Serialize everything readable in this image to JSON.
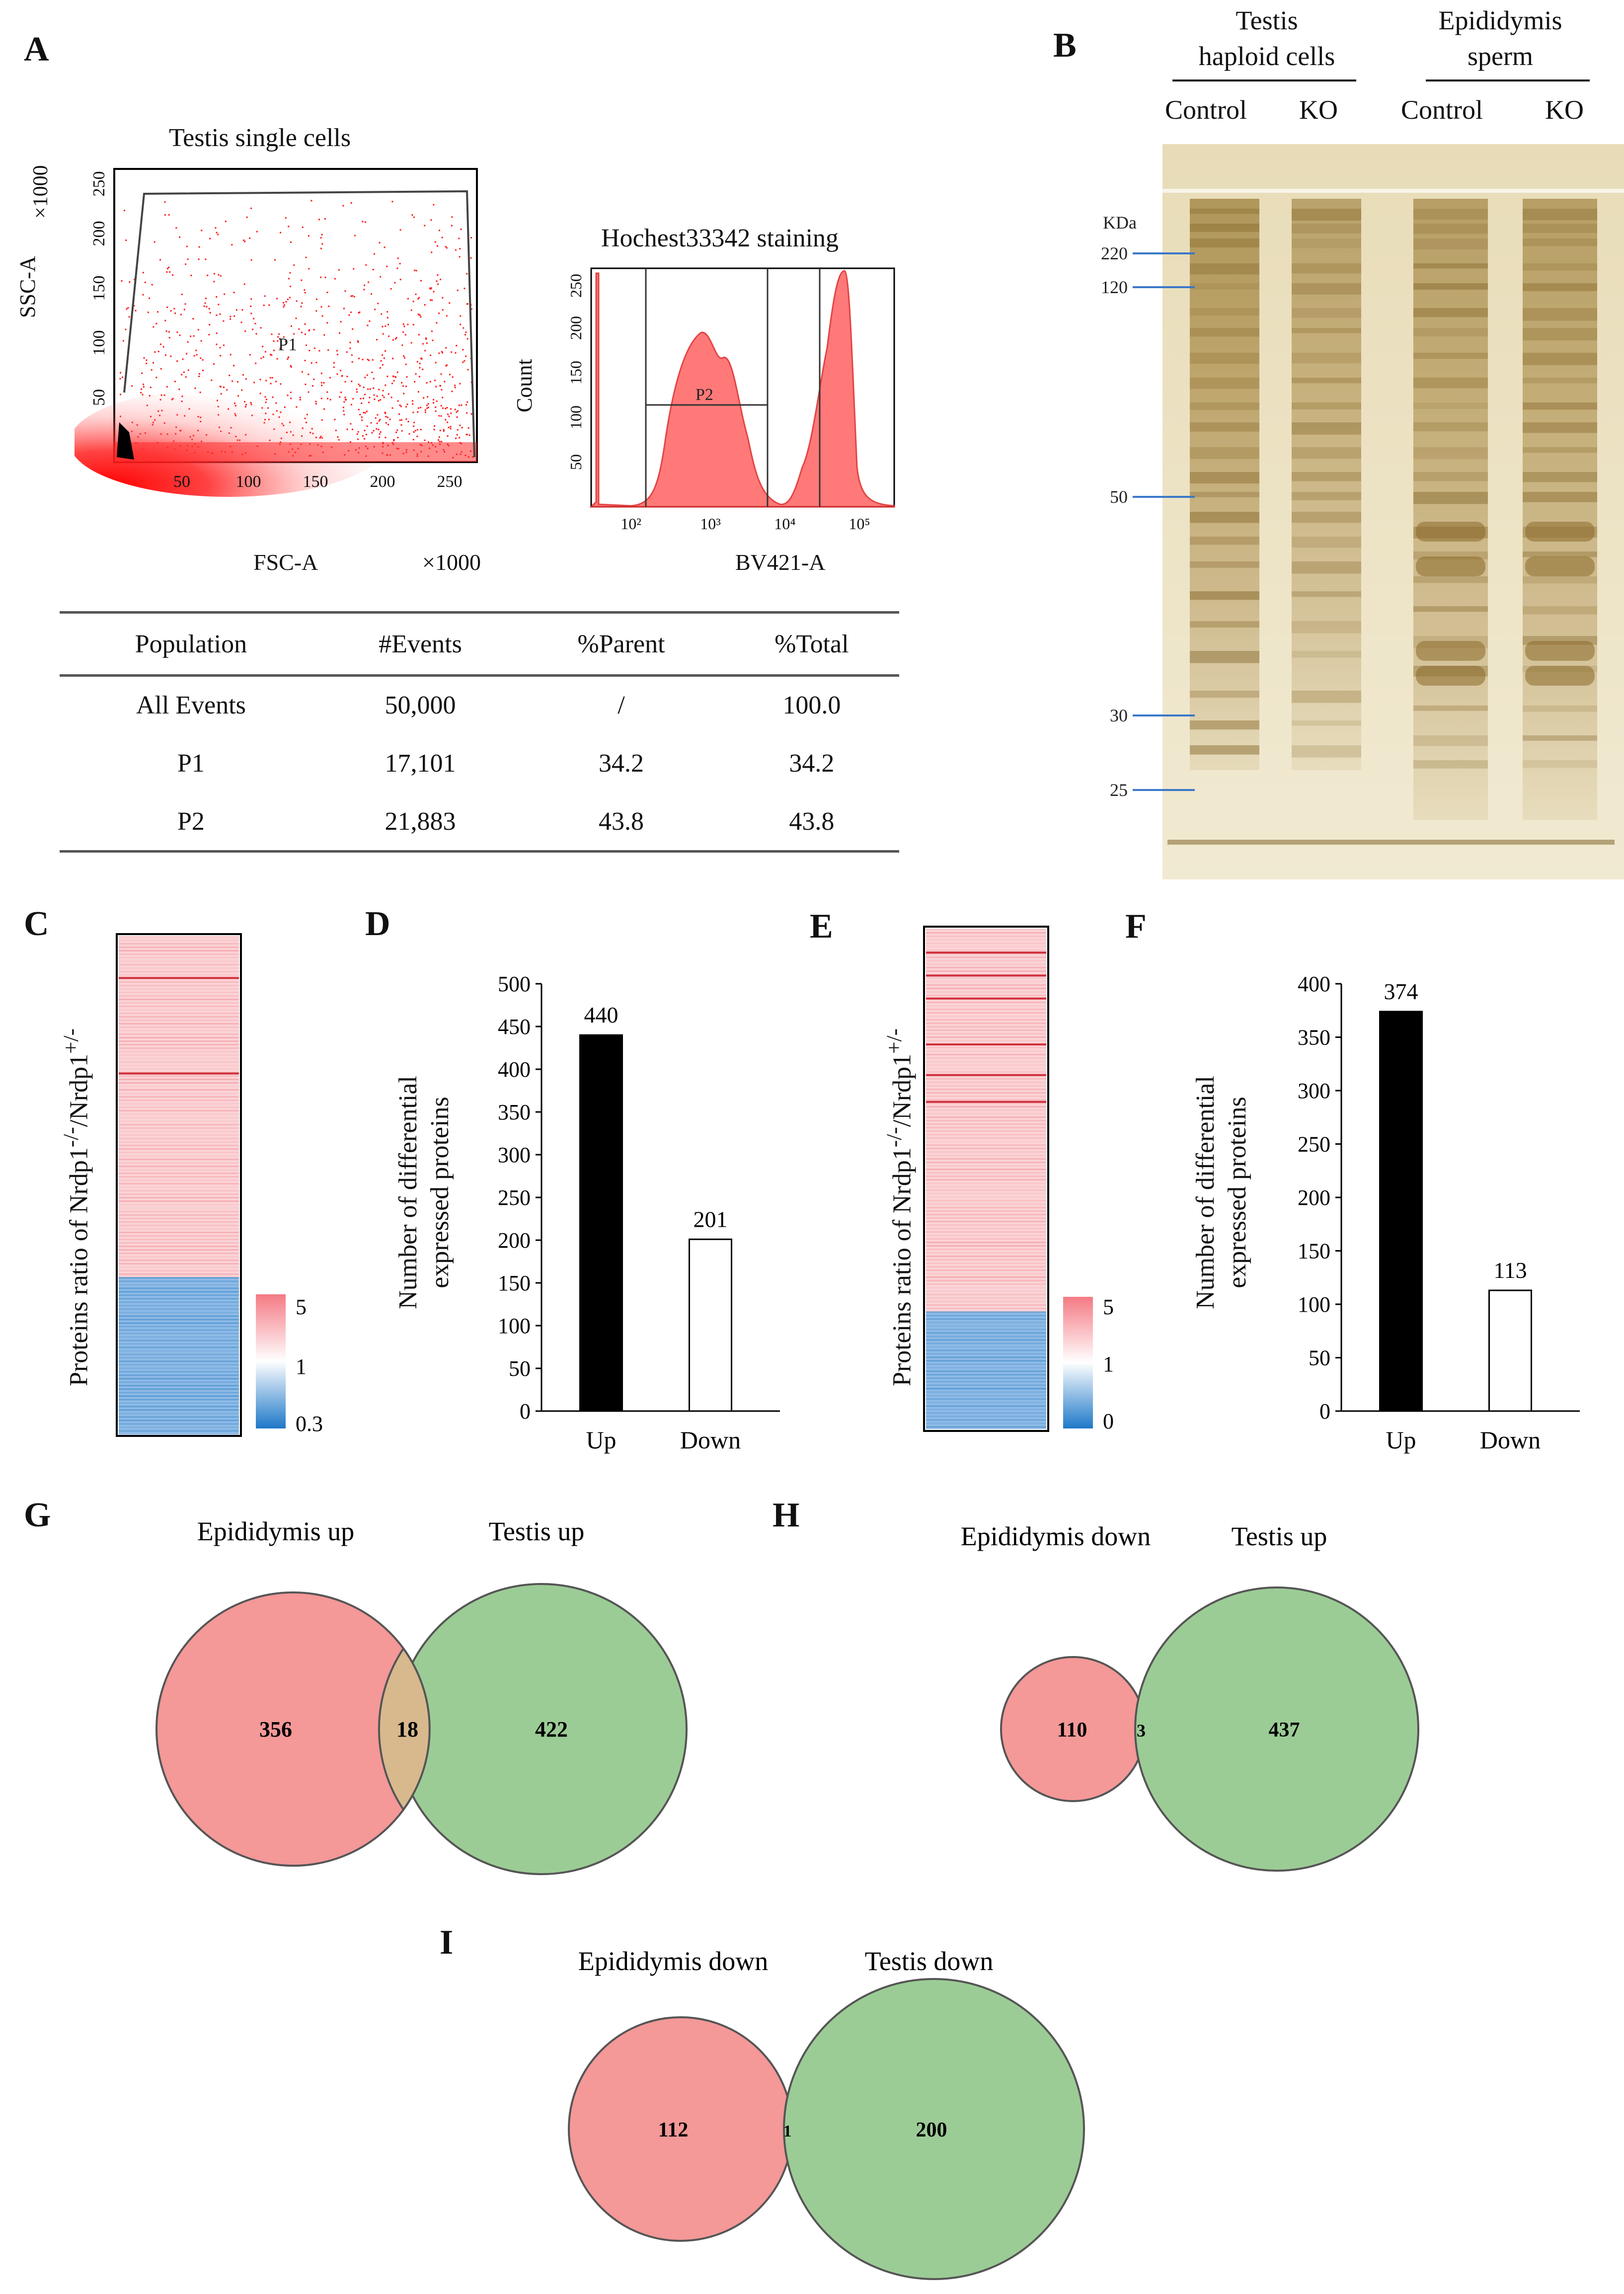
{
  "panels": {
    "A": "A",
    "B": "B",
    "C": "C",
    "D": "D",
    "E": "E",
    "F": "F",
    "G": "G",
    "H": "H",
    "I": "I"
  },
  "panelA": {
    "scatter_title": "Testis single cells",
    "x_label": "FSC-A",
    "x_scale": "×1000",
    "y_label": "SSC-A",
    "y_scale": "×1000",
    "x_ticks": [
      "50",
      "100",
      "150",
      "200",
      "250"
    ],
    "y_ticks": [
      "50",
      "100",
      "150",
      "200",
      "250"
    ],
    "gate_p1": "P1",
    "hist_title": "Hochest33342  staining",
    "hist_x_label": "BV421-A",
    "hist_y_label": "Count",
    "hist_y_ticks": [
      "50",
      "100",
      "150",
      "200",
      "250"
    ],
    "hist_x_ticks": [
      "10²",
      "10³",
      "10⁴",
      "10⁵"
    ],
    "gate_p2": "P2",
    "table": {
      "headers": [
        "Population",
        "#Events",
        "%Parent",
        "%Total"
      ],
      "rows": [
        [
          "All Events",
          "50,000",
          "/",
          "100.0"
        ],
        [
          "P1",
          "17,101",
          "34.2",
          "34.2"
        ],
        [
          "P2",
          "21,883",
          "43.8",
          "43.8"
        ]
      ]
    }
  },
  "panelB": {
    "group1_line1": "Testis",
    "group1_line2": "haploid cells",
    "group2_line1": "Epididymis",
    "group2_line2": "sperm",
    "lanes": [
      "Control",
      "KO",
      "Control",
      "KO"
    ],
    "unit": "KDa",
    "markers": [
      "220",
      "120",
      "50",
      "30",
      "25"
    ],
    "marker_color": "#3a78c8"
  },
  "panelC": {
    "y_label_html": "Proteins ratio of Nrdp1",
    "scale_labels": [
      "5",
      "1",
      "0.3"
    ]
  },
  "panelE": {
    "scale_labels": [
      "5",
      "1",
      "0"
    ]
  },
  "heatmap_colors": {
    "up": "#f4a6ac",
    "down": "#5b9bd5",
    "mid": "#ffffff"
  },
  "bar_ylabel_1": "Number of differential",
  "bar_ylabel_2": "expressed proteins",
  "chart_data": [
    {
      "panel": "D",
      "type": "bar",
      "categories": [
        "Up",
        "Down"
      ],
      "values": [
        440,
        201
      ],
      "ylim": [
        0,
        500
      ],
      "yticks": [
        "0",
        "50",
        "100",
        "150",
        "200",
        "250",
        "300",
        "350",
        "400",
        "450",
        "500"
      ],
      "ylabel": "Number of differential expressed proteins",
      "fills": [
        "#000000",
        "#ffffff"
      ]
    },
    {
      "panel": "F",
      "type": "bar",
      "categories": [
        "Up",
        "Down"
      ],
      "values": [
        374,
        113
      ],
      "ylim": [
        0,
        400
      ],
      "yticks": [
        "0",
        "50",
        "100",
        "150",
        "200",
        "250",
        "300",
        "350",
        "400"
      ],
      "ylabel": "Number of differential expressed proteins",
      "fills": [
        "#000000",
        "#ffffff"
      ]
    }
  ],
  "venns": {
    "G": {
      "left_label": "Epididymis  up",
      "right_label": "Testis up",
      "left_only": "356",
      "overlap": "18",
      "right_only": "422"
    },
    "H": {
      "left_label": "Epididymis  down",
      "right_label": "Testis up",
      "left_only": "110",
      "overlap": "3",
      "right_only": "437"
    },
    "I": {
      "left_label": "Epididymis  down",
      "right_label": "Testis down",
      "left_only": "112",
      "overlap": "1",
      "right_only": "200"
    }
  },
  "venn_colors": {
    "left": "#f49898",
    "right": "#9ccc96",
    "overlap": "#d8b98e",
    "stroke": "#555555"
  }
}
